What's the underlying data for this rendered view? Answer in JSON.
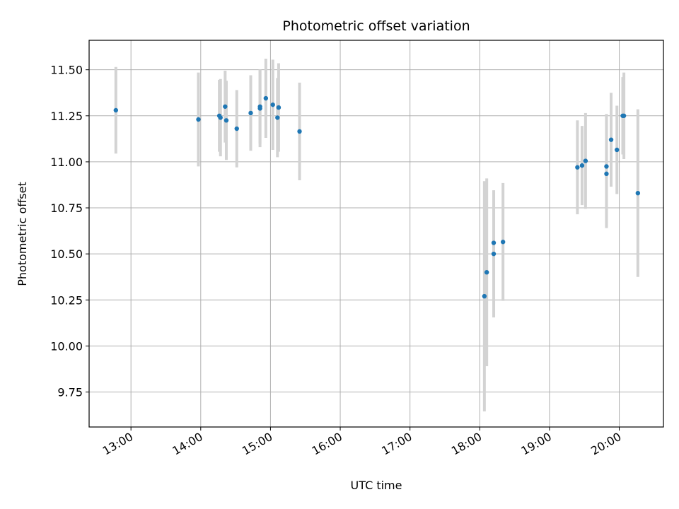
{
  "chart_data": {
    "type": "scatter",
    "title": "Photometric offset variation",
    "xlabel": "UTC time",
    "ylabel": "Photometric offset",
    "x_tick_labels": [
      "13:00",
      "14:00",
      "15:00",
      "16:00",
      "17:00",
      "18:00",
      "19:00",
      "20:00"
    ],
    "x_ticks": [
      "13:00",
      "14:00",
      "15:00",
      "16:00",
      "17:00",
      "18:00",
      "19:00",
      "20:00"
    ],
    "y_tick_labels": [
      "9.75",
      "10.00",
      "10.25",
      "10.50",
      "10.75",
      "11.00",
      "11.25",
      "11.50"
    ],
    "y_ticks": [
      9.75,
      10.0,
      10.25,
      10.5,
      10.75,
      11.0,
      11.25,
      11.5
    ],
    "xlim": [
      "12:24",
      "20:38"
    ],
    "ylim": [
      9.56,
      11.66
    ],
    "grid": true,
    "colors": {
      "points": "#1f77b4",
      "errorbars": "#d3d3d3",
      "grid": "#b0b0b0"
    },
    "points": [
      {
        "x": "12:47",
        "y": 11.28,
        "yerr": 0.235
      },
      {
        "x": "13:58",
        "y": 11.23,
        "yerr": 0.255
      },
      {
        "x": "14:16",
        "y": 11.25,
        "yerr": 0.195
      },
      {
        "x": "14:17",
        "y": 11.24,
        "yerr": 0.21
      },
      {
        "x": "14:21",
        "y": 11.3,
        "yerr": 0.195
      },
      {
        "x": "14:22",
        "y": 11.225,
        "yerr": 0.215
      },
      {
        "x": "14:31",
        "y": 11.18,
        "yerr": 0.21
      },
      {
        "x": "14:43",
        "y": 11.265,
        "yerr": 0.205
      },
      {
        "x": "14:51",
        "y": 11.29,
        "yerr": 0.21
      },
      {
        "x": "14:51",
        "y": 11.3,
        "yerr": 0.2
      },
      {
        "x": "14:56",
        "y": 11.345,
        "yerr": 0.215
      },
      {
        "x": "15:02",
        "y": 11.31,
        "yerr": 0.245
      },
      {
        "x": "15:06",
        "y": 11.24,
        "yerr": 0.215
      },
      {
        "x": "15:07",
        "y": 11.295,
        "yerr": 0.24
      },
      {
        "x": "15:25",
        "y": 11.165,
        "yerr": 0.265
      },
      {
        "x": "18:04",
        "y": 10.27,
        "yerr": 0.625
      },
      {
        "x": "18:06",
        "y": 10.4,
        "yerr": 0.51
      },
      {
        "x": "18:12",
        "y": 10.5,
        "yerr": 0.345
      },
      {
        "x": "18:12",
        "y": 10.56,
        "yerr": 0.285
      },
      {
        "x": "18:20",
        "y": 10.565,
        "yerr": 0.32
      },
      {
        "x": "19:24",
        "y": 10.97,
        "yerr": 0.255
      },
      {
        "x": "19:28",
        "y": 10.98,
        "yerr": 0.215
      },
      {
        "x": "19:31",
        "y": 11.005,
        "yerr": 0.26
      },
      {
        "x": "19:49",
        "y": 10.975,
        "yerr": 0.285
      },
      {
        "x": "19:49",
        "y": 10.935,
        "yerr": 0.295
      },
      {
        "x": "19:53",
        "y": 11.12,
        "yerr": 0.255
      },
      {
        "x": "19:58",
        "y": 11.065,
        "yerr": 0.24
      },
      {
        "x": "20:03",
        "y": 11.25,
        "yerr": 0.21
      },
      {
        "x": "20:04",
        "y": 11.25,
        "yerr": 0.235
      },
      {
        "x": "20:16",
        "y": 10.83,
        "yerr": 0.455
      }
    ]
  }
}
